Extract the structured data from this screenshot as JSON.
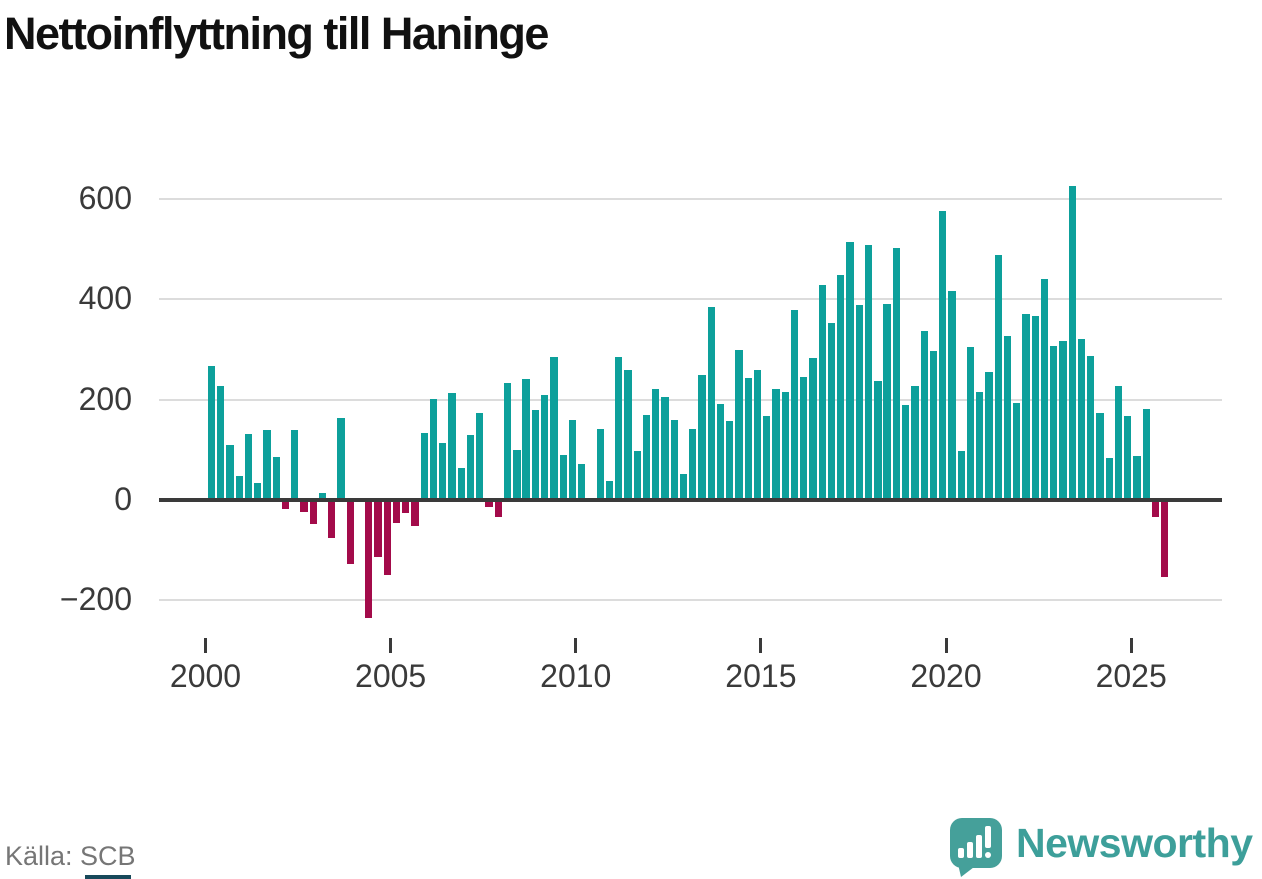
{
  "title": "Nettoinflyttning till Haninge",
  "source": "Källa: SCB",
  "branding": {
    "logo_text": "Newsworthy"
  },
  "colors": {
    "positive_bar": "#0da09b",
    "negative_bar": "#a30b4a",
    "axis": "#3a3a3a",
    "gridline": "#dcdcdc",
    "logo_teal": "#45a09a"
  },
  "chart_data": {
    "type": "bar",
    "title": "Nettoinflyttning till Haninge",
    "source_label": "Källa: SCB",
    "frequency": "quarterly",
    "x_start": "2000 Q1",
    "x_end": "2025 Q4",
    "xlabel": "",
    "ylabel": "",
    "ylim": [
      -260,
      660
    ],
    "grid": true,
    "y_tick_labels": [
      "600",
      "400",
      "200",
      "0",
      "−200"
    ],
    "y_tick_values": [
      600,
      400,
      200,
      0,
      -200
    ],
    "x_tick_labels": [
      "2000",
      "2005",
      "2010",
      "2015",
      "2020",
      "2025"
    ],
    "values_by_year": {
      "2000": [
        267,
        227,
        109,
        47
      ],
      "2001": [
        131,
        33,
        139,
        85
      ],
      "2002": [
        -18,
        139,
        -23,
        -48
      ],
      "2003": [
        15,
        -76,
        163,
        -128
      ],
      "2004": [
        -4,
        -235,
        -113,
        -150
      ],
      "2005": [
        -45,
        -25,
        -52,
        134
      ],
      "2006": [
        201,
        114,
        214,
        64
      ],
      "2007": [
        129,
        174,
        -14,
        -34
      ],
      "2008": [
        234,
        99,
        241,
        179
      ],
      "2009": [
        209,
        284,
        90,
        159
      ],
      "2010": [
        71,
        5,
        141,
        38
      ],
      "2011": [
        285,
        260,
        97,
        170
      ],
      "2012": [
        221,
        205,
        160,
        52
      ],
      "2013": [
        142,
        249,
        385,
        192
      ],
      "2014": [
        157,
        298,
        244,
        260
      ],
      "2015": [
        167,
        221,
        215,
        378
      ],
      "2016": [
        245,
        283,
        428,
        352
      ],
      "2017": [
        448,
        515,
        389,
        508
      ],
      "2018": [
        238,
        390,
        502,
        190
      ],
      "2019": [
        227,
        337,
        297,
        576
      ],
      "2020": [
        417,
        97,
        305,
        215
      ],
      "2021": [
        255,
        488,
        327,
        193
      ],
      "2022": [
        370,
        367,
        440,
        307
      ],
      "2023": [
        317,
        625,
        321,
        287
      ],
      "2024": [
        173,
        83,
        227,
        167
      ],
      "2025": [
        87,
        182,
        -33,
        -154
      ]
    }
  }
}
